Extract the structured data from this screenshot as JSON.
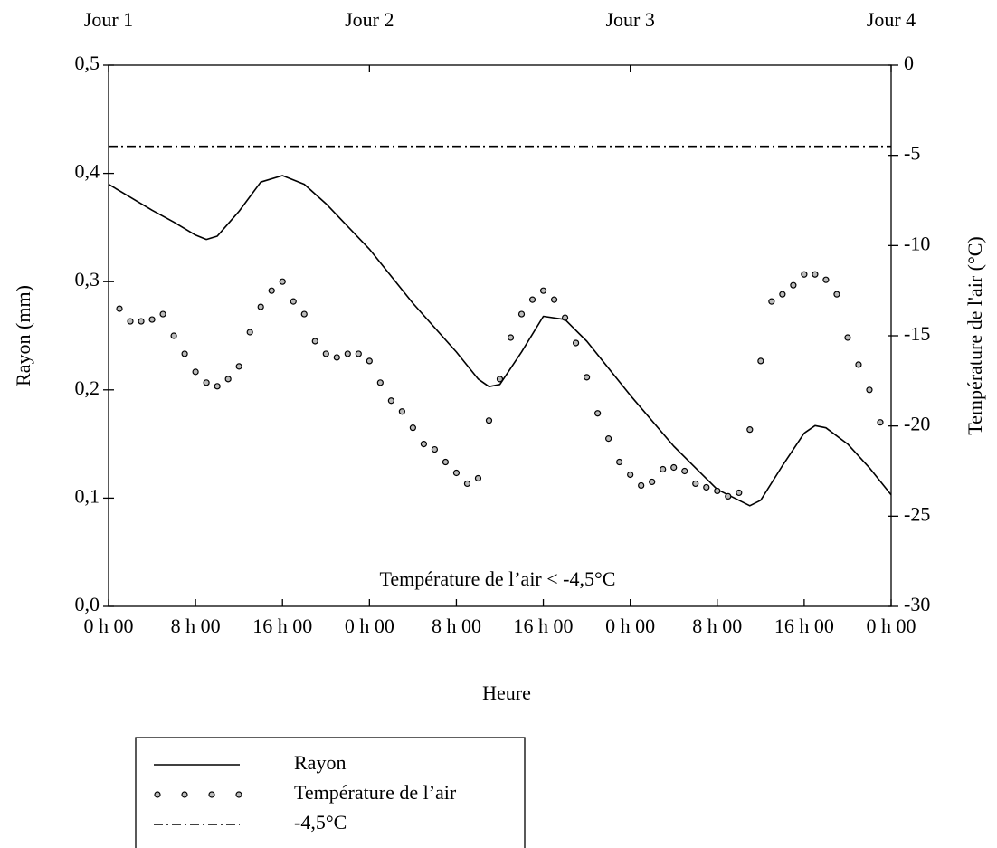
{
  "chart_data": {
    "type": "line",
    "xlabel": "Heure",
    "ylabel": "Rayon (mm)",
    "y2label": "Température de l'air (°C)",
    "annotation": "Température de l’air  < -4,5°C",
    "xlim": [
      0,
      72
    ],
    "xticks": [
      {
        "value": 0,
        "label": "0 h 00"
      },
      {
        "value": 8,
        "label": "8 h 00"
      },
      {
        "value": 16,
        "label": "16 h 00"
      },
      {
        "value": 24,
        "label": "0 h 00"
      },
      {
        "value": 32,
        "label": "8 h 00"
      },
      {
        "value": 40,
        "label": "16 h 00"
      },
      {
        "value": 48,
        "label": "0 h 00"
      },
      {
        "value": 56,
        "label": "8 h 00"
      },
      {
        "value": 64,
        "label": "16 h 00"
      },
      {
        "value": 72,
        "label": "0 h 00"
      }
    ],
    "x2ticks": [
      {
        "value": 0,
        "label": "Jour 1"
      },
      {
        "value": 24,
        "label": "Jour 2"
      },
      {
        "value": 48,
        "label": "Jour 3"
      },
      {
        "value": 72,
        "label": "Jour 4"
      }
    ],
    "ylim": [
      0,
      0.5
    ],
    "yticks": [
      {
        "value": 0,
        "label": "0,0"
      },
      {
        "value": 0.1,
        "label": "0,1"
      },
      {
        "value": 0.2,
        "label": "0,2"
      },
      {
        "value": 0.3,
        "label": "0,3"
      },
      {
        "value": 0.4,
        "label": "0,4"
      },
      {
        "value": 0.5,
        "label": "0,5"
      }
    ],
    "y2lim": [
      -30,
      0
    ],
    "y2ticks": [
      0,
      -5,
      -10,
      -15,
      -20,
      -25,
      -30
    ],
    "series": [
      {
        "name": "Rayon",
        "color": "#000000",
        "style": "solid",
        "x": [
          0,
          2,
          4,
          6,
          8,
          9,
          10,
          12,
          14,
          16,
          18,
          20,
          24,
          28,
          32,
          34,
          35,
          36,
          38,
          40,
          42,
          44,
          48,
          52,
          56,
          59,
          60,
          62,
          64,
          65,
          66,
          68,
          70,
          72
        ],
        "values": [
          0.39,
          0.378,
          0.366,
          0.355,
          0.343,
          0.339,
          0.342,
          0.365,
          0.392,
          0.398,
          0.39,
          0.372,
          0.33,
          0.28,
          0.235,
          0.21,
          0.203,
          0.205,
          0.235,
          0.268,
          0.265,
          0.245,
          0.195,
          0.148,
          0.108,
          0.093,
          0.098,
          0.13,
          0.16,
          0.167,
          0.165,
          0.15,
          0.128,
          0.103
        ]
      },
      {
        "name": "Température de l’air",
        "color": "#000000",
        "style": "dots",
        "axis": "y2",
        "x": [
          1,
          2,
          3,
          4,
          5,
          6,
          7,
          8,
          9,
          10,
          11,
          12,
          13,
          14,
          15,
          16,
          17,
          18,
          19,
          20,
          21,
          22,
          23,
          24,
          25,
          26,
          27,
          28,
          29,
          30,
          31,
          32,
          33,
          34,
          35,
          36,
          37,
          38,
          39,
          40,
          41,
          42,
          43,
          44,
          45,
          46,
          47,
          48,
          49,
          50,
          51,
          52,
          53,
          54,
          55,
          56,
          57,
          58,
          59,
          60,
          61,
          62,
          63,
          64,
          65,
          66,
          67,
          68,
          69,
          70,
          71
        ],
        "values": [
          -13.5,
          -14.2,
          -14.2,
          -14.1,
          -13.8,
          -15.0,
          -16.0,
          -17.0,
          -17.6,
          -17.8,
          -17.4,
          -16.7,
          -14.8,
          -13.4,
          -12.5,
          -12.0,
          -13.1,
          -13.8,
          -15.3,
          -16.0,
          -16.2,
          -16.0,
          -16.0,
          -16.4,
          -17.6,
          -18.6,
          -19.2,
          -20.1,
          -21.0,
          -21.3,
          -22.0,
          -22.6,
          -23.2,
          -22.9,
          -19.7,
          -17.4,
          -15.1,
          -13.8,
          -13.0,
          -12.5,
          -13.0,
          -14.0,
          -15.4,
          -17.3,
          -19.3,
          -20.7,
          -22.0,
          -22.7,
          -23.3,
          -23.1,
          -22.4,
          -22.3,
          -22.5,
          -23.2,
          -23.4,
          -23.6,
          -23.9,
          -23.7,
          -20.2,
          -16.4,
          -13.1,
          -12.7,
          -12.2,
          -11.6,
          -11.6,
          -11.9,
          -12.7,
          -15.1,
          -16.6,
          -18.0,
          -19.8
        ]
      },
      {
        "name": "-4,5°C",
        "color": "#000000",
        "style": "dashdot",
        "axis": "y2",
        "x": [
          0,
          72
        ],
        "values": [
          -4.5,
          -4.5
        ]
      }
    ]
  }
}
